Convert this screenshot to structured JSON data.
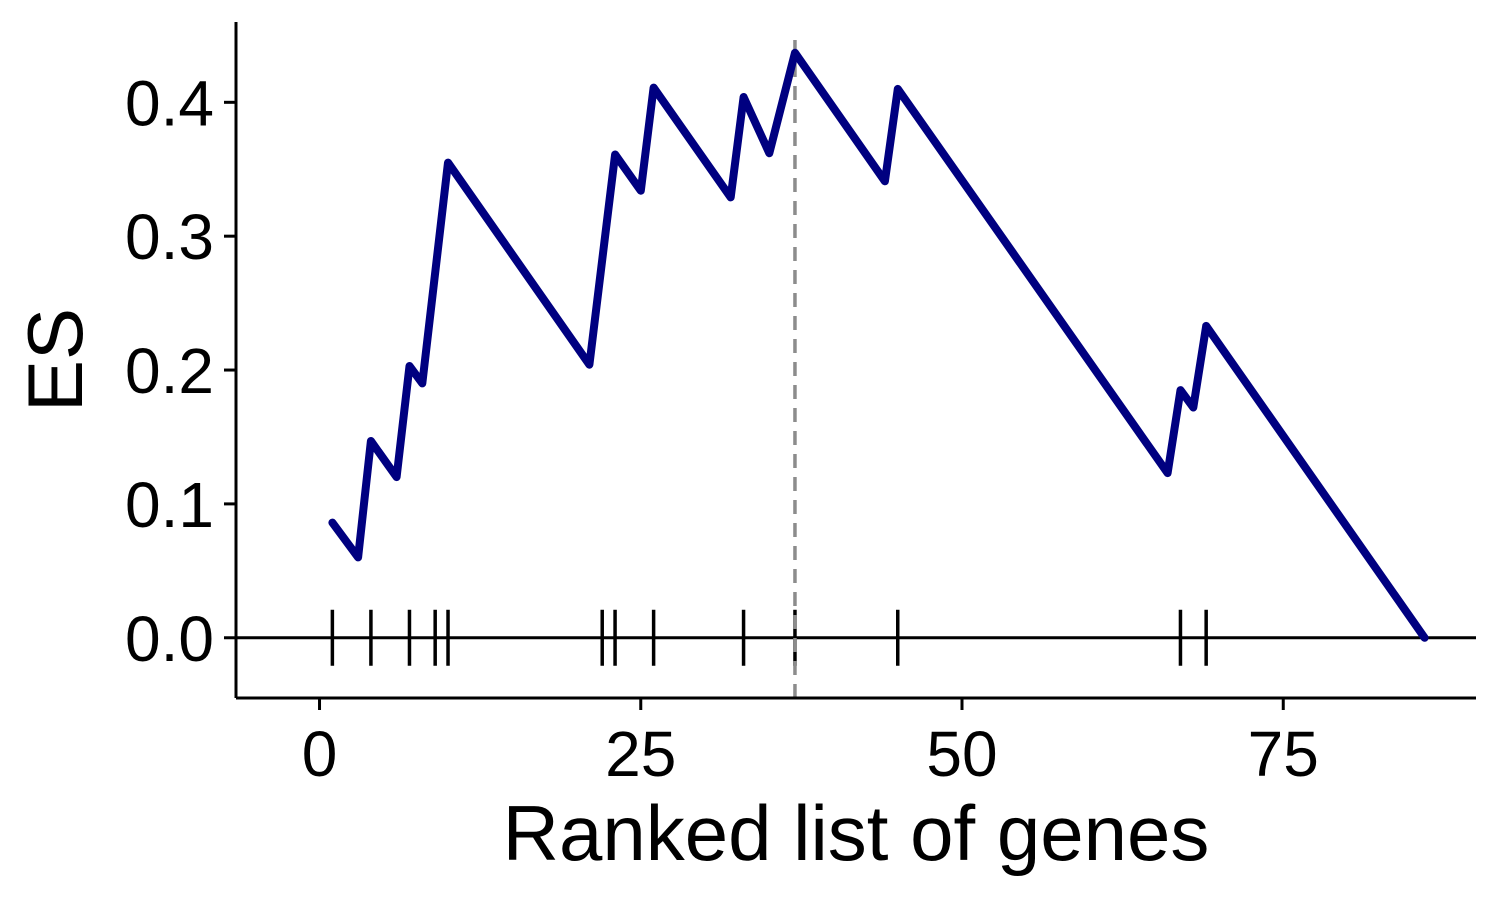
{
  "chart_data": {
    "type": "line",
    "xlabel": "Ranked list of genes",
    "ylabel": "ES",
    "xlim": [
      -6.5,
      90
    ],
    "ylim": [
      -0.045,
      0.46
    ],
    "x_ticks": [
      0,
      25,
      50,
      75
    ],
    "y_ticks": [
      0.0,
      0.1,
      0.2,
      0.3,
      0.4
    ],
    "x_tick_labels": [
      "0",
      "25",
      "50",
      "75"
    ],
    "y_tick_labels": [
      "0.0",
      "0.1",
      "0.2",
      "0.3",
      "0.4"
    ],
    "grid": false,
    "legend": "none",
    "series": [
      {
        "x": [
          1,
          3,
          4,
          6,
          7,
          8,
          10,
          21,
          23,
          25,
          26,
          32,
          33,
          35,
          37,
          44,
          45,
          66,
          67,
          68,
          69,
          86
        ],
        "values": [
          0.086,
          0.06,
          0.147,
          0.12,
          0.203,
          0.19,
          0.355,
          0.204,
          0.361,
          0.334,
          0.411,
          0.329,
          0.404,
          0.362,
          0.437,
          0.341,
          0.41,
          0.123,
          0.185,
          0.172,
          0.233,
          0.0
        ]
      }
    ],
    "hit_positions": [
      1,
      4,
      7,
      9,
      10,
      22,
      23,
      26,
      33,
      37,
      45,
      67,
      69
    ],
    "reference_line": {
      "x": 37,
      "style": "dashed"
    },
    "colors": {
      "line": "#000080",
      "reference": "#8c8c8c",
      "axis": "#000000"
    }
  }
}
